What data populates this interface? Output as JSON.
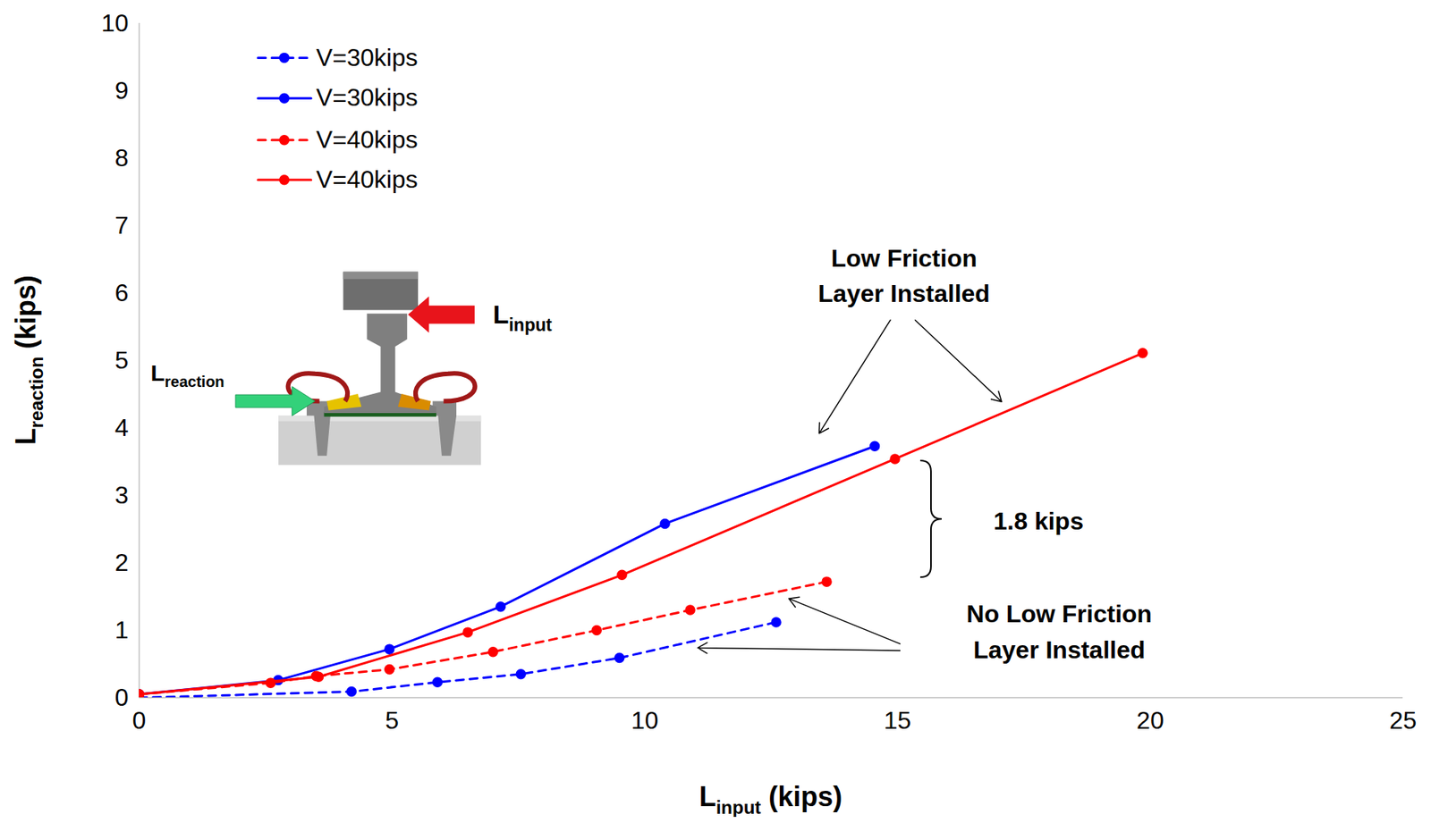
{
  "chart_data": {
    "type": "line",
    "x_label": {
      "base": "L",
      "subscript": "input",
      "suffix": " (kips)"
    },
    "y_label": {
      "base": "L",
      "subscript": "reaction",
      "suffix": " (kips)"
    },
    "xlim": [
      0,
      25
    ],
    "xticks": [
      0,
      5,
      10,
      15,
      20,
      25
    ],
    "ylim": [
      0,
      10
    ],
    "yticks": [
      0,
      1,
      2,
      3,
      4,
      5,
      6,
      7,
      8,
      9,
      10
    ],
    "grid": false,
    "legend": "top-left",
    "series": [
      {
        "name": "V=30kips",
        "color": "#0000ff",
        "line_style": "dashed",
        "marker": "circle",
        "x": [
          0,
          4.2,
          5.9,
          7.55,
          9.5,
          12.6
        ],
        "values": [
          0,
          0.09,
          0.23,
          0.35,
          0.59,
          1.12
        ]
      },
      {
        "name": "V=30kips",
        "color": "#0000ff",
        "line_style": "solid",
        "marker": "circle",
        "x": [
          0,
          2.75,
          4.95,
          7.15,
          10.4,
          14.55
        ],
        "values": [
          0.05,
          0.26,
          0.72,
          1.35,
          2.58,
          3.73
        ]
      },
      {
        "name": "V=40kips",
        "color": "#ff0000",
        "line_style": "dashed",
        "marker": "circle",
        "x": [
          0,
          2.6,
          3.5,
          4.95,
          7.0,
          9.05,
          10.9,
          13.6
        ],
        "values": [
          0.05,
          0.22,
          0.32,
          0.42,
          0.68,
          1.0,
          1.3,
          1.72
        ]
      },
      {
        "name": "V=40kips",
        "color": "#ff0000",
        "line_style": "solid",
        "marker": "circle",
        "x": [
          0,
          3.55,
          6.5,
          9.55,
          14.95,
          19.85
        ],
        "values": [
          0.05,
          0.31,
          0.97,
          1.82,
          3.54,
          5.11
        ]
      }
    ],
    "annotations": [
      {
        "text": "Low Friction\nLayer Installed"
      },
      {
        "text": "No Low Friction\nLayer Installed"
      },
      {
        "text": "1.8 kips"
      }
    ],
    "inset": {
      "input_label": {
        "base": "L",
        "subscript": "input"
      },
      "reaction_label": {
        "base": "L",
        "subscript": "reaction"
      }
    }
  }
}
